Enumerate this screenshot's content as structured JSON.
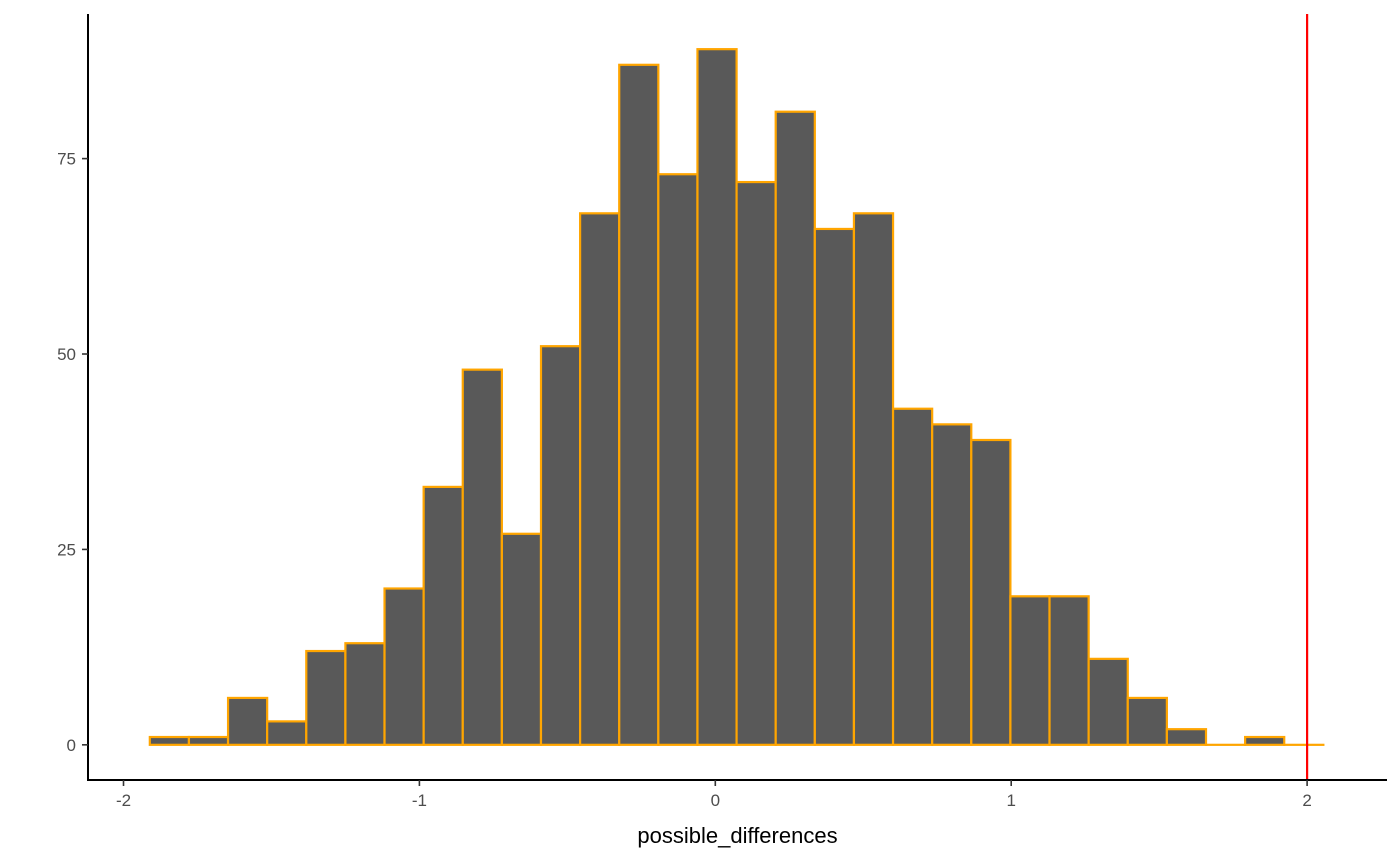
{
  "chart_data": {
    "type": "bar",
    "subtype": "histogram",
    "xlabel": "possible_differences",
    "ylabel": "",
    "xlim": [
      -2.12,
      2.27
    ],
    "ylim": [
      -4.5,
      93.5
    ],
    "x_ticks": [
      -2,
      -1,
      0,
      1,
      2
    ],
    "x_tick_labels": [
      "-2",
      "-1",
      "0",
      "1",
      "2"
    ],
    "y_ticks": [
      0,
      25,
      50,
      75
    ],
    "y_tick_labels": [
      "0",
      "25",
      "50",
      "75"
    ],
    "bin_start": -1.9111,
    "bin_width": 0.1322,
    "counts": [
      1,
      1,
      6,
      3,
      12,
      13,
      20,
      33,
      48,
      27,
      51,
      68,
      87,
      73,
      89,
      72,
      81,
      66,
      68,
      43,
      41,
      39,
      19,
      19,
      11,
      6,
      2,
      0,
      1,
      0
    ],
    "reference_line": {
      "x": 2.0,
      "color": "#ff0000"
    },
    "bar_fill": "#595959",
    "bar_outline": "#ffa500",
    "grid": false
  }
}
